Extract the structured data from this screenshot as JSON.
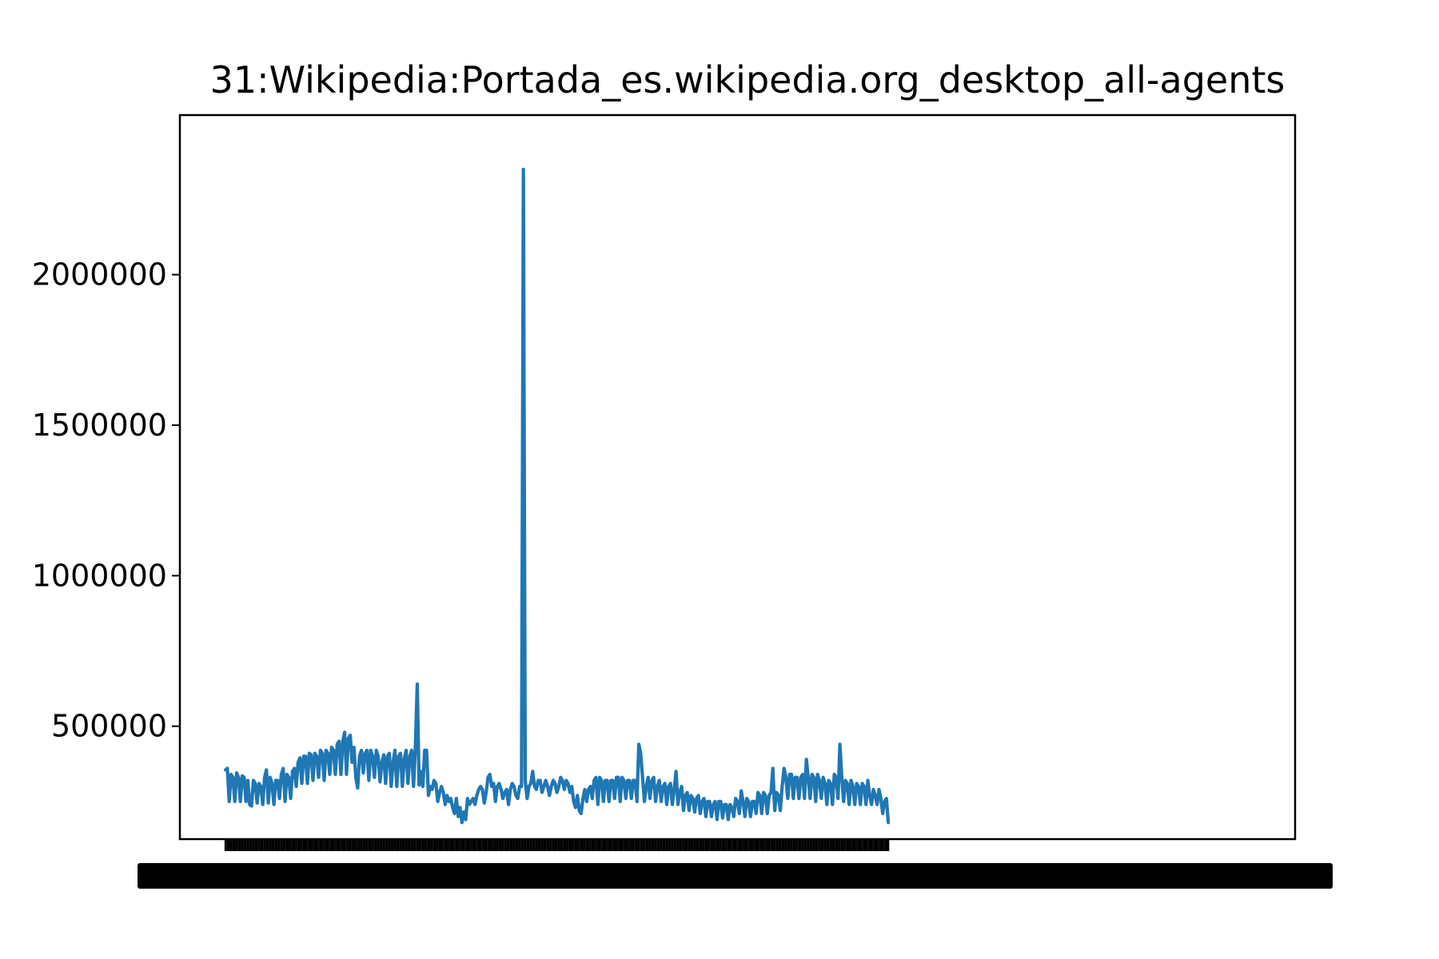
{
  "chart_data": {
    "type": "line",
    "title": "31:Wikipedia:Portada_es.wikipedia.org_desktop_all-agents",
    "xlabel": "",
    "ylabel": "",
    "x_tick_labels_note": "x tick labels are dense overlapping black text; individual date strings are not legible",
    "y_ticks": [
      500000,
      1000000,
      1500000,
      2000000
    ],
    "y_tick_labels": [
      "500000",
      "1000000",
      "1500000",
      "2000000"
    ],
    "xlim": [
      -24.5,
      574.5
    ],
    "ylim": [
      125000,
      2530000
    ],
    "grid": false,
    "line_color": "#1f77b4",
    "series": [
      {
        "values": [
          355000,
          360000,
          250000,
          340000,
          330000,
          250000,
          345000,
          330000,
          250000,
          335000,
          330000,
          250000,
          320000,
          240000,
          235000,
          320000,
          310000,
          245000,
          310000,
          300000,
          240000,
          330000,
          355000,
          245000,
          330000,
          310000,
          240000,
          320000,
          320000,
          260000,
          340000,
          360000,
          250000,
          340000,
          330000,
          260000,
          350000,
          360000,
          300000,
          380000,
          395000,
          310000,
          400000,
          400000,
          310000,
          410000,
          405000,
          320000,
          410000,
          400000,
          330000,
          420000,
          410000,
          320000,
          420000,
          410000,
          340000,
          430000,
          420000,
          340000,
          440000,
          450000,
          340000,
          450000,
          480000,
          340000,
          460000,
          470000,
          380000,
          430000,
          330000,
          295000,
          400000,
          420000,
          345000,
          410000,
          420000,
          320000,
          420000,
          400000,
          330000,
          420000,
          400000,
          315000,
          380000,
          405000,
          310000,
          400000,
          410000,
          300000,
          380000,
          420000,
          300000,
          400000,
          410000,
          300000,
          390000,
          420000,
          310000,
          400000,
          420000,
          300000,
          430000,
          640000,
          305000,
          350000,
          300000,
          420000,
          420000,
          270000,
          300000,
          290000,
          320000,
          310000,
          250000,
          280000,
          300000,
          280000,
          240000,
          270000,
          250000,
          260000,
          230000,
          210000,
          260000,
          200000,
          230000,
          180000,
          215000,
          190000,
          260000,
          240000,
          250000,
          260000,
          240000,
          270000,
          290000,
          300000,
          290000,
          245000,
          280000,
          330000,
          340000,
          300000,
          310000,
          250000,
          300000,
          310000,
          290000,
          260000,
          280000,
          290000,
          240000,
          290000,
          310000,
          300000,
          270000,
          260000,
          300000,
          300000,
          2350000,
          320000,
          260000,
          300000,
          310000,
          350000,
          300000,
          290000,
          320000,
          320000,
          280000,
          300000,
          320000,
          300000,
          270000,
          300000,
          320000,
          310000,
          280000,
          300000,
          330000,
          320000,
          290000,
          320000,
          310000,
          280000,
          300000,
          250000,
          230000,
          270000,
          220000,
          210000,
          260000,
          290000,
          250000,
          290000,
          300000,
          260000,
          320000,
          330000,
          240000,
          330000,
          320000,
          250000,
          320000,
          320000,
          250000,
          320000,
          320000,
          260000,
          330000,
          330000,
          250000,
          330000,
          320000,
          260000,
          320000,
          320000,
          260000,
          320000,
          320000,
          250000,
          440000,
          410000,
          330000,
          250000,
          300000,
          330000,
          260000,
          320000,
          330000,
          250000,
          300000,
          320000,
          250000,
          300000,
          310000,
          240000,
          300000,
          310000,
          240000,
          290000,
          350000,
          240000,
          280000,
          300000,
          220000,
          270000,
          280000,
          220000,
          270000,
          260000,
          215000,
          260000,
          270000,
          210000,
          250000,
          260000,
          200000,
          250000,
          250000,
          200000,
          240000,
          250000,
          190000,
          250000,
          250000,
          195000,
          240000,
          240000,
          190000,
          240000,
          230000,
          200000,
          260000,
          250000,
          210000,
          285000,
          250000,
          200000,
          260000,
          250000,
          200000,
          250000,
          250000,
          210000,
          280000,
          270000,
          210000,
          280000,
          270000,
          210000,
          270000,
          280000,
          360000,
          220000,
          280000,
          270000,
          220000,
          300000,
          360000,
          330000,
          260000,
          340000,
          340000,
          260000,
          330000,
          330000,
          260000,
          330000,
          340000,
          260000,
          390000,
          330000,
          260000,
          340000,
          330000,
          250000,
          340000,
          320000,
          260000,
          330000,
          310000,
          240000,
          320000,
          310000,
          240000,
          340000,
          330000,
          260000,
          440000,
          330000,
          250000,
          320000,
          310000,
          240000,
          320000,
          300000,
          240000,
          310000,
          300000,
          240000,
          310000,
          300000,
          240000,
          320000,
          270000,
          240000,
          290000,
          270000,
          240000,
          290000,
          260000,
          210000,
          250000,
          260000,
          180000
        ]
      }
    ]
  }
}
